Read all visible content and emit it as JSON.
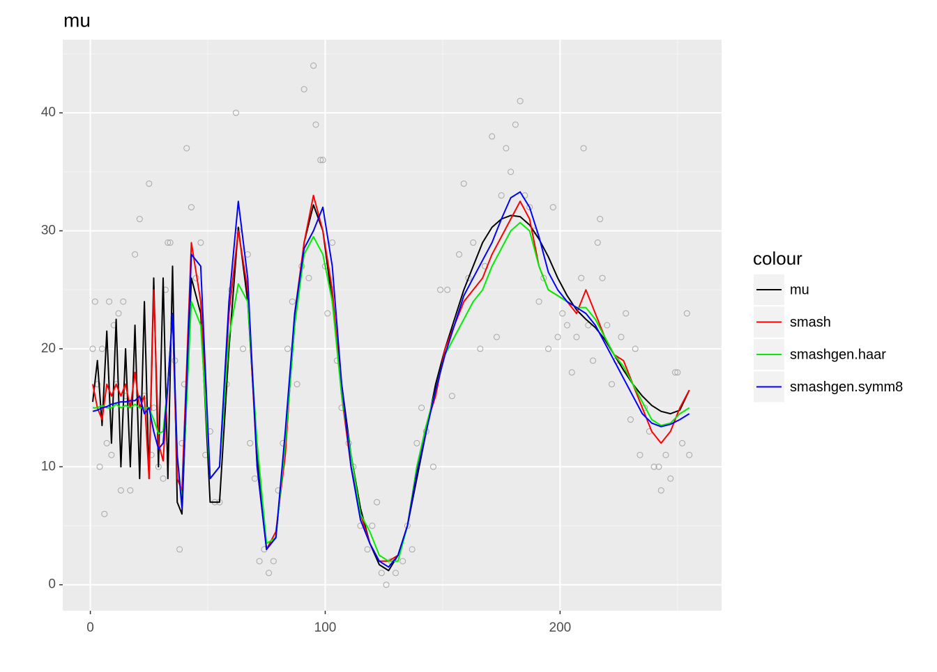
{
  "chart_data": {
    "type": "line",
    "title": "mu",
    "legend_title": "colour",
    "legend": "right",
    "grid": true,
    "xlim": [
      -11.75,
      268.75
    ],
    "ylim": [
      -2.2,
      46.2
    ],
    "xticks": [
      0,
      100,
      200
    ],
    "yticks": [
      0,
      10,
      20,
      30,
      40
    ],
    "minor_xticks": [
      50,
      150,
      250
    ],
    "minor_yticks": [
      5,
      15,
      25,
      35,
      45
    ],
    "x": [
      1,
      3,
      5,
      7,
      9,
      11,
      13,
      15,
      17,
      19,
      21,
      23,
      25,
      27,
      29,
      31,
      33,
      35,
      37,
      39,
      43,
      47,
      51,
      55,
      59,
      63,
      67,
      71,
      75,
      79,
      83,
      87,
      91,
      95,
      99,
      103,
      107,
      111,
      115,
      119,
      123,
      127,
      131,
      135,
      139,
      143,
      147,
      151,
      155,
      159,
      163,
      167,
      171,
      175,
      179,
      183,
      187,
      191,
      195,
      199,
      203,
      207,
      211,
      215,
      219,
      223,
      227,
      231,
      235,
      239,
      243,
      247,
      251,
      255
    ],
    "series": [
      {
        "name": "mu",
        "color": "#000000",
        "values": [
          15.5,
          19,
          13.5,
          21.5,
          12,
          22.5,
          10,
          20,
          10,
          22,
          9,
          24,
          9,
          26,
          10,
          26,
          9,
          27,
          7,
          6,
          26,
          23,
          7,
          7,
          20,
          30.3,
          24,
          11,
          3,
          4,
          12,
          22,
          29,
          32.2,
          30,
          24,
          17,
          11,
          6.5,
          3.5,
          1.7,
          1.2,
          2.5,
          5,
          9,
          13,
          17,
          20,
          22.5,
          25,
          27,
          29,
          30.3,
          31,
          31.3,
          31.2,
          30.5,
          29.3,
          27.8,
          26,
          24.5,
          23.3,
          22.5,
          21.8,
          20.8,
          19.5,
          18.2,
          17,
          16,
          15.2,
          14.7,
          14.5,
          14.8,
          16.5
        ]
      },
      {
        "name": "smash",
        "color": "#ff0000",
        "values": [
          17,
          15,
          14,
          17,
          16,
          17,
          16,
          17,
          15,
          18,
          15,
          16,
          9,
          25,
          12,
          10.5,
          17,
          23,
          9,
          8,
          29,
          24,
          9,
          10,
          23,
          30,
          25,
          10,
          3,
          4.5,
          11,
          23,
          29,
          33,
          30,
          25,
          16,
          10,
          6,
          3.5,
          2,
          2,
          2.5,
          5,
          10,
          13.5,
          16,
          20,
          22,
          24,
          25,
          26,
          28,
          29.5,
          31,
          32.5,
          31,
          27,
          25,
          24.5,
          24,
          23,
          25,
          23,
          21,
          19.5,
          19,
          17,
          15,
          13,
          12,
          13,
          15,
          16.5
        ]
      },
      {
        "name": "smashgen.haar",
        "color": "#00ee00",
        "values": [
          15,
          15,
          15.2,
          15,
          15,
          15.3,
          15,
          15.2,
          15,
          15.3,
          15,
          15,
          15,
          14,
          12.8,
          13,
          17,
          23,
          11,
          7,
          24,
          22,
          9,
          10,
          21,
          25.5,
          24,
          12,
          3.5,
          4,
          12,
          22,
          28,
          29.5,
          28,
          24,
          16,
          11,
          6,
          4.5,
          2.5,
          2,
          2,
          5,
          10,
          13.5,
          16.5,
          19.5,
          21,
          22.5,
          24,
          25,
          27,
          28.5,
          30,
          30.7,
          30,
          27,
          25,
          24.5,
          24,
          23.5,
          23.5,
          22.5,
          21,
          19.5,
          18.5,
          17,
          15.5,
          14,
          13.5,
          13.7,
          14.5,
          15
        ]
      },
      {
        "name": "smashgen.symm8",
        "color": "#0000ff",
        "values": [
          14.7,
          14.8,
          15,
          15.1,
          15.3,
          15.4,
          15.5,
          15.5,
          15.6,
          15.6,
          16,
          14.5,
          15,
          13,
          11.5,
          12,
          17,
          23,
          11,
          6.5,
          28,
          27,
          9,
          10,
          24,
          32.5,
          26,
          10,
          3,
          4,
          13,
          23,
          28.5,
          30,
          32,
          27,
          17,
          10,
          5.5,
          3.5,
          2,
          1.5,
          2.5,
          5,
          9.5,
          13,
          16.5,
          19.5,
          22,
          24.5,
          26,
          27.5,
          29,
          31,
          32.8,
          33.3,
          32,
          29.5,
          26.5,
          25,
          24,
          23.5,
          23,
          22,
          20.5,
          19,
          17.5,
          16,
          14.5,
          13.7,
          13.4,
          13.6,
          14,
          14.5
        ]
      }
    ],
    "points": {
      "color": "#a6a6a6",
      "x": [
        1,
        2,
        3,
        4,
        5,
        6,
        7,
        8,
        9,
        10,
        11,
        12,
        13,
        14,
        15,
        17,
        19,
        21,
        23,
        25,
        26,
        27,
        29,
        31,
        32,
        33,
        34,
        36,
        38,
        39,
        40,
        41,
        43,
        45,
        47,
        49,
        51,
        53,
        55,
        58,
        60,
        62,
        63,
        65,
        67,
        68,
        70,
        72,
        74,
        76,
        78,
        80,
        82,
        84,
        86,
        88,
        90,
        91,
        93,
        95,
        96,
        98,
        99,
        100,
        101,
        103,
        105,
        107,
        110,
        112,
        115,
        118,
        120,
        122,
        124,
        126,
        128,
        130,
        133,
        135,
        137,
        139,
        141,
        143,
        146,
        149,
        152,
        154,
        157,
        159,
        161,
        163,
        166,
        168,
        171,
        173,
        175,
        177,
        179,
        181,
        183,
        185,
        187,
        189,
        191,
        193,
        195,
        197,
        199,
        201,
        203,
        205,
        207,
        209,
        210,
        212,
        214,
        216,
        217,
        218,
        220,
        222,
        224,
        226,
        228,
        230,
        232,
        234,
        236,
        238,
        240,
        242,
        243,
        245,
        247,
        249,
        250,
        252,
        254,
        255
      ],
      "y": [
        20,
        24,
        17,
        10,
        20,
        6,
        12,
        24,
        11,
        22,
        17,
        23,
        8,
        24,
        16,
        8,
        28,
        31,
        16,
        34,
        11,
        15,
        10,
        9,
        25,
        29,
        29,
        19,
        3,
        12,
        17,
        37,
        32,
        26,
        29,
        11,
        13,
        7,
        7,
        17,
        25,
        40,
        30,
        20,
        28,
        12,
        9,
        2,
        3,
        1,
        2,
        8,
        12,
        20,
        24,
        17,
        27,
        42,
        26,
        44,
        39,
        36,
        36,
        27,
        23,
        29,
        19,
        15,
        12,
        10,
        5,
        3,
        5,
        7,
        1,
        0,
        2,
        1,
        2,
        5,
        3,
        12,
        15,
        13,
        10,
        25,
        25,
        16,
        28,
        34,
        26,
        29,
        20,
        27,
        38,
        21,
        33,
        37,
        35,
        39,
        41,
        33,
        32,
        30,
        24,
        26,
        20,
        32,
        21,
        23,
        22,
        18,
        21,
        26,
        37,
        22,
        19,
        29,
        31,
        26,
        22,
        17,
        19,
        21,
        23,
        14,
        20,
        11,
        15,
        13,
        10,
        10,
        8,
        11,
        9,
        18,
        18,
        12,
        23,
        11
      ]
    }
  }
}
